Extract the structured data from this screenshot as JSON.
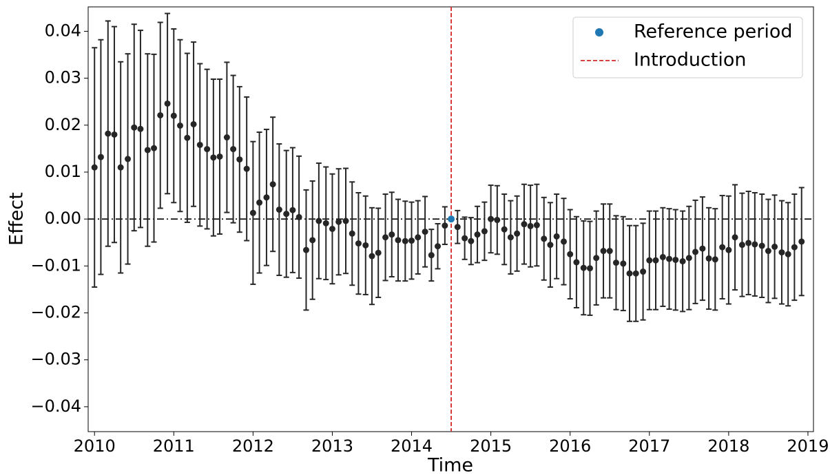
{
  "chart_data": {
    "type": "errorbar",
    "x_label": "Time",
    "y_label": "Effect",
    "xlim": [
      2009.92,
      2019.07
    ],
    "ylim": [
      -0.0453,
      0.0452
    ],
    "xticks": [
      2010,
      2011,
      2012,
      2013,
      2014,
      2015,
      2016,
      2017,
      2018,
      2019
    ],
    "yticks": [
      {
        "value": -0.04,
        "label": "−0.04"
      },
      {
        "value": -0.03,
        "label": "−0.03"
      },
      {
        "value": -0.02,
        "label": "−0.02"
      },
      {
        "value": -0.01,
        "label": "−0.01"
      },
      {
        "value": 0,
        "label": "0.00"
      },
      0.01,
      0.02,
      0.03,
      0.04
    ],
    "color": "#262626",
    "x": [
      2010,
      2010.08,
      2010.17,
      2010.25,
      2010.33,
      2010.42,
      2010.5,
      2010.58,
      2010.67,
      2010.75,
      2010.83,
      2010.92,
      2011,
      2011.08,
      2011.17,
      2011.25,
      2011.33,
      2011.42,
      2011.5,
      2011.58,
      2011.67,
      2011.75,
      2011.83,
      2011.92,
      2012,
      2012.08,
      2012.17,
      2012.25,
      2012.33,
      2012.42,
      2012.5,
      2012.58,
      2012.67,
      2012.75,
      2012.83,
      2012.92,
      2013,
      2013.08,
      2013.17,
      2013.25,
      2013.33,
      2013.42,
      2013.5,
      2013.58,
      2013.67,
      2013.75,
      2013.83,
      2013.92,
      2014,
      2014.08,
      2014.17,
      2014.25,
      2014.33,
      2014.42,
      2014.58,
      2014.67,
      2014.75,
      2014.83,
      2014.92,
      2015,
      2015.08,
      2015.17,
      2015.25,
      2015.33,
      2015.42,
      2015.5,
      2015.58,
      2015.67,
      2015.75,
      2015.83,
      2015.92,
      2016,
      2016.08,
      2016.17,
      2016.25,
      2016.33,
      2016.42,
      2016.5,
      2016.58,
      2016.67,
      2016.75,
      2016.83,
      2016.92,
      2017,
      2017.08,
      2017.17,
      2017.25,
      2017.33,
      2017.42,
      2017.5,
      2017.58,
      2017.67,
      2017.75,
      2017.83,
      2017.92,
      2018,
      2018.08,
      2018.17,
      2018.25,
      2018.33,
      2018.42,
      2018.5,
      2018.58,
      2018.67,
      2018.75,
      2018.83,
      2018.92
    ],
    "values": [
      0.011,
      0.0132,
      0.0182,
      0.018,
      0.011,
      0.0128,
      0.0195,
      0.0192,
      0.0147,
      0.0151,
      0.0221,
      0.0246,
      0.022,
      0.0199,
      0.0173,
      0.0202,
      0.0158,
      0.0149,
      0.0131,
      0.0133,
      0.0174,
      0.0149,
      0.0127,
      0.0107,
      0.0013,
      0.0035,
      0.0046,
      0.0074,
      0.002,
      0.0011,
      0.0019,
      0.0004,
      -0.0066,
      -0.0045,
      -0.0004,
      -0.0009,
      -0.0021,
      -0.0006,
      -0.0004,
      -0.0031,
      -0.0052,
      -0.0056,
      -0.0079,
      -0.0072,
      -0.0039,
      -0.0033,
      -0.0045,
      -0.0047,
      -0.0046,
      -0.0039,
      -0.0027,
      -0.0077,
      -0.0058,
      -0.0014,
      -0.0017,
      -0.0041,
      -0.0047,
      -0.0033,
      -0.0026,
      0,
      -0.0002,
      -0.0022,
      -0.0039,
      -0.0031,
      -0.0011,
      -0.0015,
      -0.0013,
      -0.0042,
      -0.0055,
      -0.0037,
      -0.0048,
      -0.0075,
      -0.0092,
      -0.0104,
      -0.0105,
      -0.0083,
      -0.0068,
      -0.0068,
      -0.0093,
      -0.0095,
      -0.0116,
      -0.0116,
      -0.0112,
      -0.0088,
      -0.0088,
      -0.0081,
      -0.0085,
      -0.0087,
      -0.009,
      -0.0083,
      -0.007,
      -0.0063,
      -0.0084,
      -0.0086,
      -0.006,
      -0.0066,
      -0.0039,
      -0.0055,
      -0.0051,
      -0.0054,
      -0.0057,
      -0.0068,
      -0.0059,
      -0.0071,
      -0.0075,
      -0.006,
      -0.0048
    ],
    "errors": [
      0.0255,
      0.025,
      0.024,
      0.023,
      0.0225,
      0.0224,
      0.022,
      0.021,
      0.0205,
      0.02,
      0.0198,
      0.0192,
      0.0185,
      0.0183,
      0.018,
      0.0175,
      0.0173,
      0.017,
      0.0167,
      0.0165,
      0.016,
      0.0157,
      0.0155,
      0.0153,
      0.0152,
      0.015,
      0.0145,
      0.0143,
      0.014,
      0.0135,
      0.0133,
      0.013,
      0.0128,
      0.0126,
      0.0123,
      0.012,
      0.0117,
      0.0113,
      0.0112,
      0.011,
      0.0108,
      0.0105,
      0.0103,
      0.0095,
      0.0092,
      0.009,
      0.0087,
      0.0085,
      0.0082,
      0.0078,
      0.0075,
      0.0055,
      0.0048,
      0.004,
      0.0035,
      0.0045,
      0.005,
      0.006,
      0.0062,
      0.0072,
      0.0073,
      0.0075,
      0.0078,
      0.008,
      0.0085,
      0.0087,
      0.0087,
      0.0088,
      0.009,
      0.009,
      0.0092,
      0.0095,
      0.0097,
      0.01,
      0.01,
      0.01,
      0.01,
      0.01,
      0.01,
      0.01,
      0.0102,
      0.0102,
      0.0103,
      0.0105,
      0.0105,
      0.0105,
      0.0107,
      0.0107,
      0.0107,
      0.011,
      0.011,
      0.011,
      0.0108,
      0.0108,
      0.011,
      0.0115,
      0.0112,
      0.011,
      0.011,
      0.011,
      0.011,
      0.011,
      0.011,
      0.011,
      0.011,
      0.0113,
      0.0115
    ],
    "zero_line": 0,
    "reference": {
      "name": "Reference period",
      "x": 2014.5,
      "value": 0,
      "color": "#1f77b4"
    },
    "introduction": {
      "name": "Introduction",
      "x": 2014.5,
      "color": "#d62728"
    }
  }
}
